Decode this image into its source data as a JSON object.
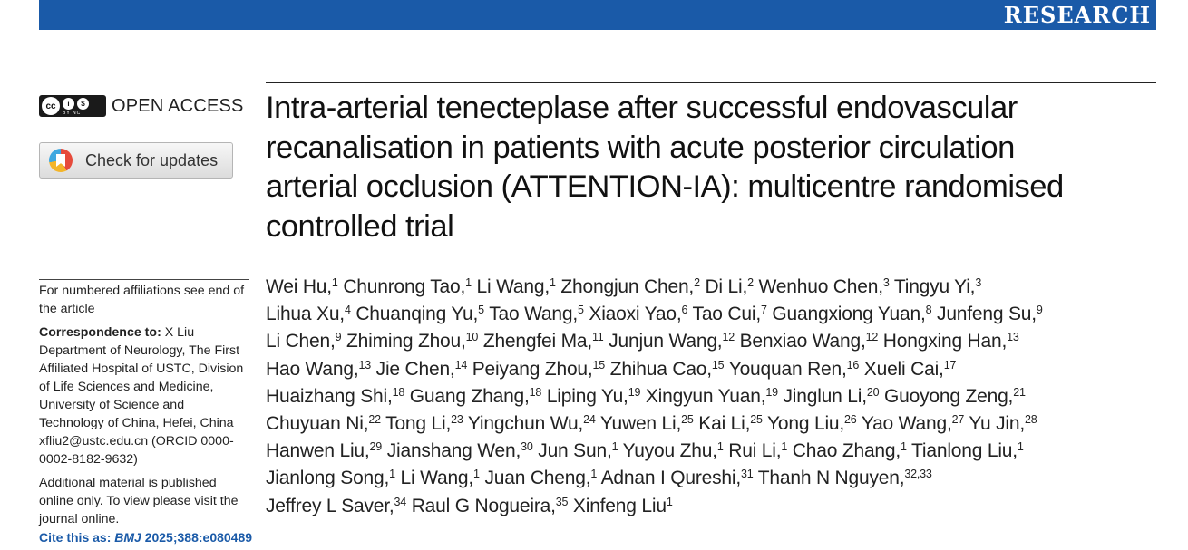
{
  "header": {
    "section_label": "RESEARCH",
    "bar_color": "#1a5aa8"
  },
  "license": {
    "open_access_label": "OPEN ACCESS",
    "cc_badge_text": "BY NC",
    "cc_symbol": "cc"
  },
  "updates_button": {
    "label": "Check for updates"
  },
  "sidebar": {
    "affiliations_note": "For numbered affiliations see end of the article",
    "correspondence_label": "Correspondence to:",
    "correspondence_body": "X Liu Department of Neurology, The First Affiliated Hospital of USTC, Division of Life Sciences and Medicine, University of Science and Technology of China, Hefei, China xfliu2@ustc.edu.cn (ORCID 0000-0002-8182-9632)",
    "additional_material": "Additional material is published online only. To view please visit the journal online.",
    "cite_label": "Cite this as:",
    "cite_journal": "BMJ",
    "cite_ref": "2025;388:e080489"
  },
  "title_lines": [
    "Intra-arterial tenecteplase after successful endovascular",
    "recanalisation in patients with acute posterior circulation",
    "arterial occlusion (ATTENTION-IA): multicentre randomised",
    "controlled trial"
  ],
  "author_lines": [
    [
      [
        "Wei Hu,",
        "1"
      ],
      [
        "Chunrong Tao,",
        "1"
      ],
      [
        "Li Wang,",
        "1"
      ],
      [
        "Zhongjun Chen,",
        "2"
      ],
      [
        "Di Li,",
        "2"
      ],
      [
        "Wenhuo Chen,",
        "3"
      ],
      [
        "Tingyu Yi,",
        "3"
      ]
    ],
    [
      [
        "Lihua Xu,",
        "4"
      ],
      [
        "Chuanqing Yu,",
        "5"
      ],
      [
        "Tao Wang,",
        "5"
      ],
      [
        "Xiaoxi Yao,",
        "6"
      ],
      [
        "Tao Cui,",
        "7"
      ],
      [
        "Guangxiong Yuan,",
        "8"
      ],
      [
        "Junfeng Su,",
        "9"
      ]
    ],
    [
      [
        "Li Chen,",
        "9"
      ],
      [
        "Zhiming Zhou,",
        "10"
      ],
      [
        "Zhengfei Ma,",
        "11"
      ],
      [
        "Junjun Wang,",
        "12"
      ],
      [
        "Benxiao Wang,",
        "12"
      ],
      [
        "Hongxing Han,",
        "13"
      ]
    ],
    [
      [
        "Hao Wang,",
        "13"
      ],
      [
        "Jie Chen,",
        "14"
      ],
      [
        "Peiyang Zhou,",
        "15"
      ],
      [
        "Zhihua Cao,",
        "15"
      ],
      [
        "Youquan Ren,",
        "16"
      ],
      [
        "Xueli Cai,",
        "17"
      ]
    ],
    [
      [
        "Huaizhang Shi,",
        "18"
      ],
      [
        "Guang Zhang,",
        "18"
      ],
      [
        "Liping Yu,",
        "19"
      ],
      [
        "Xingyun Yuan,",
        "19"
      ],
      [
        "Jinglun Li,",
        "20"
      ],
      [
        "Guoyong Zeng,",
        "21"
      ]
    ],
    [
      [
        "Chuyuan Ni,",
        "22"
      ],
      [
        "Tong Li,",
        "23"
      ],
      [
        "Yingchun Wu,",
        "24"
      ],
      [
        "Yuwen Li,",
        "25"
      ],
      [
        "Kai Li,",
        "25"
      ],
      [
        "Yong Liu,",
        "26"
      ],
      [
        "Yao Wang,",
        "27"
      ],
      [
        "Yu Jin,",
        "28"
      ]
    ],
    [
      [
        "Hanwen Liu,",
        "29"
      ],
      [
        "Jianshang Wen,",
        "30"
      ],
      [
        "Jun Sun,",
        "1"
      ],
      [
        "Yuyou Zhu,",
        "1"
      ],
      [
        "Rui Li,",
        "1"
      ],
      [
        "Chao Zhang,",
        "1"
      ],
      [
        "Tianlong Liu,",
        "1"
      ]
    ],
    [
      [
        "Jianlong Song,",
        "1"
      ],
      [
        "Li Wang,",
        "1"
      ],
      [
        "Juan Cheng,",
        "1"
      ],
      [
        "Adnan I Qureshi,",
        "31"
      ],
      [
        "Thanh N Nguyen,",
        "32,33"
      ]
    ],
    [
      [
        "Jeffrey L Saver,",
        "34"
      ],
      [
        "Raul G Nogueira,",
        "35"
      ],
      [
        "Xinfeng Liu",
        "1"
      ]
    ]
  ]
}
